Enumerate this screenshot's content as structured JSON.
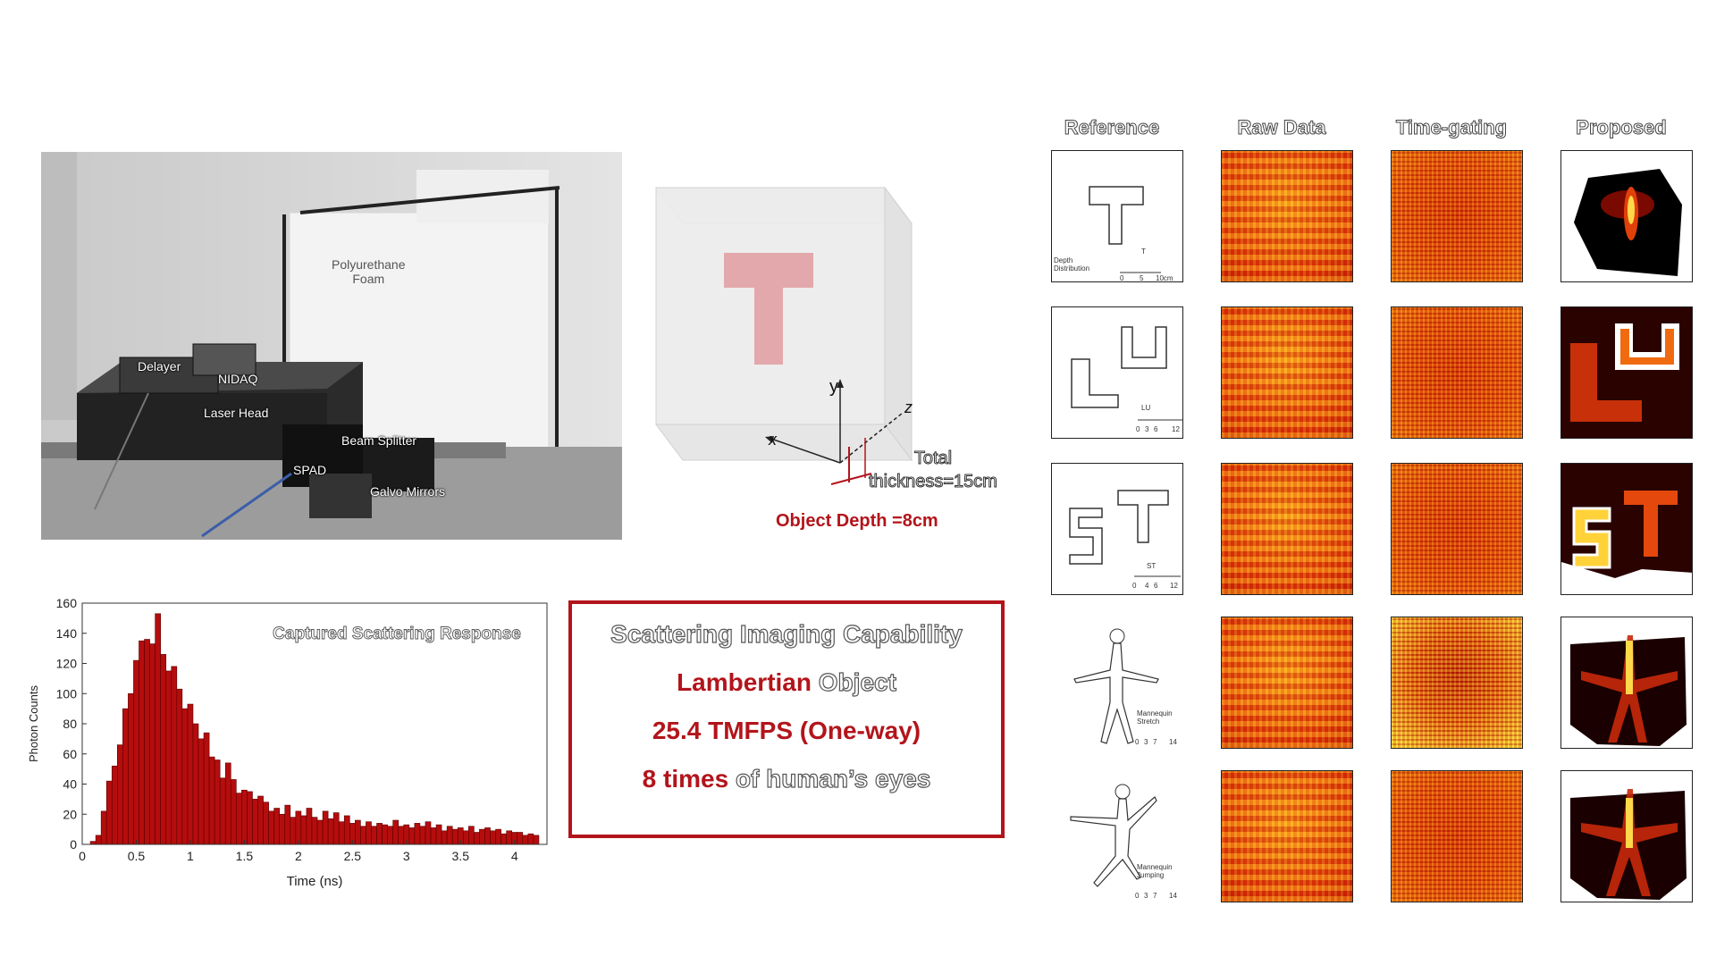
{
  "photo": {
    "labels": {
      "foam": "Polyurethane\nFoam",
      "delayer": "Delayer",
      "nidaq": "NIDAQ",
      "laser_head": "Laser Head",
      "beam_splitter": "Beam Splitter",
      "spad": "SPAD",
      "galvo": "Galvo Mirrors"
    }
  },
  "diagram": {
    "axis_y": "y",
    "axis_x": "x",
    "axis_z": "z",
    "thickness": "Total\nthickness=15cm",
    "depth": "Object Depth =8cm"
  },
  "capability": {
    "title": "Scattering Imaging Capability",
    "line1_red": "Lambertian",
    "line1_rest": " Object",
    "line2": "25.4 TMFPS (One-way)",
    "line3_red": "8 times",
    "line3_rest": " of human’s eyes"
  },
  "grid": {
    "headers": [
      "Reference",
      "Raw Data",
      "Time-gating",
      "Proposed"
    ],
    "ref_annotations": [
      {
        "label": "Depth\nDistribution",
        "marks": [
          "0",
          "5",
          "10cm"
        ],
        "tag": "T"
      },
      {
        "label": "",
        "marks": [
          "0",
          "3",
          "6",
          "12"
        ],
        "tag": "LU"
      },
      {
        "label": "",
        "marks": [
          "0",
          "4",
          "6",
          "12"
        ],
        "tag": "ST"
      },
      {
        "label": "Mannequin\nStretch",
        "marks": [
          "0",
          "3",
          "7",
          "14"
        ],
        "tag": ""
      },
      {
        "label": "Mannequin\nJumping",
        "marks": [
          "0",
          "3",
          "7",
          "14"
        ],
        "tag": ""
      }
    ]
  },
  "chart_data": {
    "type": "bar",
    "title": "Captured Scattering Response",
    "xlabel": "Time (ns)",
    "ylabel": "Photon Counts",
    "xlim": [
      0,
      4.3
    ],
    "ylim": [
      0,
      160
    ],
    "xticks": [
      "0",
      "0.5",
      "1",
      "1.5",
      "2",
      "2.5",
      "3",
      "3.5",
      "4"
    ],
    "yticks": [
      "0",
      "20",
      "40",
      "60",
      "80",
      "100",
      "120",
      "140",
      "160"
    ],
    "bin_width": 0.05,
    "x": [
      0.1,
      0.15,
      0.2,
      0.25,
      0.3,
      0.35,
      0.4,
      0.45,
      0.5,
      0.55,
      0.6,
      0.65,
      0.7,
      0.75,
      0.8,
      0.85,
      0.9,
      0.95,
      1.0,
      1.05,
      1.1,
      1.15,
      1.2,
      1.25,
      1.3,
      1.35,
      1.4,
      1.45,
      1.5,
      1.55,
      1.6,
      1.65,
      1.7,
      1.75,
      1.8,
      1.85,
      1.9,
      1.95,
      2.0,
      2.05,
      2.1,
      2.15,
      2.2,
      2.25,
      2.3,
      2.35,
      2.4,
      2.45,
      2.5,
      2.55,
      2.6,
      2.65,
      2.7,
      2.75,
      2.8,
      2.85,
      2.9,
      2.95,
      3.0,
      3.05,
      3.1,
      3.15,
      3.2,
      3.25,
      3.3,
      3.35,
      3.4,
      3.45,
      3.5,
      3.55,
      3.6,
      3.65,
      3.7,
      3.75,
      3.8,
      3.85,
      3.9,
      3.95,
      4.0,
      4.05,
      4.1,
      4.15,
      4.2
    ],
    "values": [
      2,
      6,
      22,
      42,
      52,
      66,
      90,
      100,
      122,
      135,
      136,
      133,
      153,
      126,
      115,
      118,
      103,
      90,
      93,
      80,
      70,
      74,
      58,
      56,
      44,
      54,
      43,
      34,
      36,
      35,
      30,
      32,
      28,
      22,
      24,
      20,
      26,
      18,
      22,
      19,
      24,
      18,
      16,
      22,
      17,
      21,
      15,
      19,
      14,
      16,
      12,
      15,
      12,
      14,
      13,
      12,
      16,
      12,
      13,
      11,
      14,
      12,
      15,
      11,
      13,
      9,
      12,
      10,
      11,
      9,
      12,
      8,
      10,
      11,
      9,
      10,
      7,
      9,
      8,
      8,
      6,
      7,
      6
    ]
  }
}
